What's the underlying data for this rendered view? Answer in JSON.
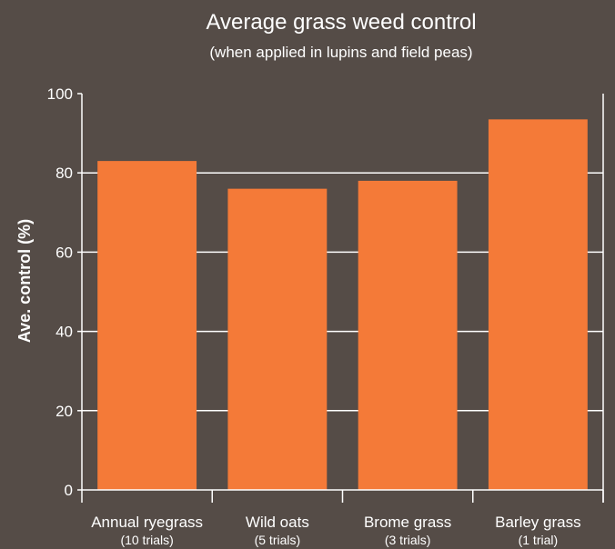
{
  "chart_data": {
    "type": "bar",
    "title": "Average grass weed control",
    "subtitle": "(when applied in lupins and field peas)",
    "ylabel": "Ave. control (%)",
    "xlabel": "",
    "ylim": [
      0,
      100
    ],
    "yticks": [
      0,
      20,
      40,
      60,
      80,
      100
    ],
    "grid": true,
    "categories": [
      "Annual ryegrass",
      "Wild oats",
      "Brome grass",
      "Barley grass"
    ],
    "category_notes": [
      "(10 trials)",
      "(5 trials)",
      "(3 trials)",
      "(1 trial)"
    ],
    "values": [
      83,
      76,
      78,
      93.5
    ],
    "colors": {
      "background": "#554c47",
      "bar": "#f47a38",
      "grid": "#ffffff",
      "text": "#ffffff"
    }
  }
}
